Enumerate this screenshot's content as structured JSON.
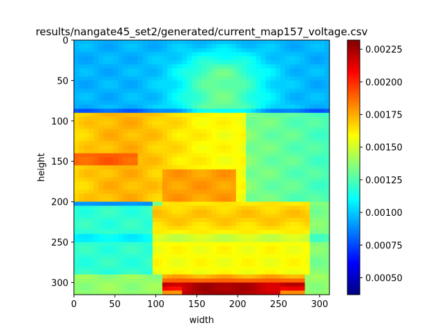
{
  "chart_data": {
    "type": "heatmap",
    "title": "results/nangate45_set2/generated/current_map157_voltage.csv",
    "xlabel": "width",
    "ylabel": "height",
    "xlim": [
      0,
      312
    ],
    "ylim": [
      0,
      315
    ],
    "y_inverted": true,
    "xticks": [
      0,
      50,
      100,
      150,
      200,
      250,
      300
    ],
    "yticks": [
      0,
      50,
      100,
      150,
      200,
      250,
      300
    ],
    "colormap": "jet",
    "colorbar": {
      "min": 0.00037,
      "max": 0.00232,
      "ticks": [
        "0.00050",
        "0.00075",
        "0.00100",
        "0.00125",
        "0.00150",
        "0.00175",
        "0.00200",
        "0.00225"
      ]
    }
  }
}
